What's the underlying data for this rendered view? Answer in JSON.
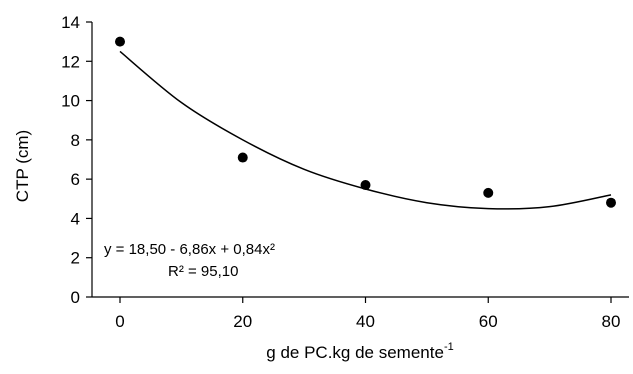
{
  "chart_data": {
    "type": "scatter",
    "xlabel": "g de PC.kg de semente",
    "xlabel_superscript": "-1",
    "ylabel": "CTP (cm)",
    "xlim": [
      0,
      80
    ],
    "ylim": [
      0,
      14
    ],
    "x_ticks": [
      0,
      20,
      40,
      60,
      80
    ],
    "y_ticks": [
      0,
      2,
      4,
      6,
      8,
      10,
      12,
      14
    ],
    "x_tick_labels": [
      "0",
      "20",
      "40",
      "60",
      "80"
    ],
    "y_tick_labels": [
      "0",
      "2",
      "4",
      "6",
      "8",
      "10",
      "12",
      "14"
    ],
    "grid": false,
    "series": [
      {
        "type": "scatter",
        "x": [
          0,
          20,
          40,
          60,
          80
        ],
        "y": [
          13.0,
          7.1,
          5.7,
          5.3,
          4.8
        ],
        "marker_color": "#000000"
      },
      {
        "type": "line",
        "x": [
          0,
          10,
          20,
          30,
          40,
          50,
          60,
          70,
          80
        ],
        "y": [
          12.5,
          9.9,
          8.0,
          6.5,
          5.5,
          4.8,
          4.5,
          4.6,
          5.2
        ],
        "line_color": "#000000"
      }
    ],
    "annotations": {
      "equation": "y = 18,50 - 6,86x + 0,84x²",
      "r_squared": "R² = 95,10"
    }
  }
}
